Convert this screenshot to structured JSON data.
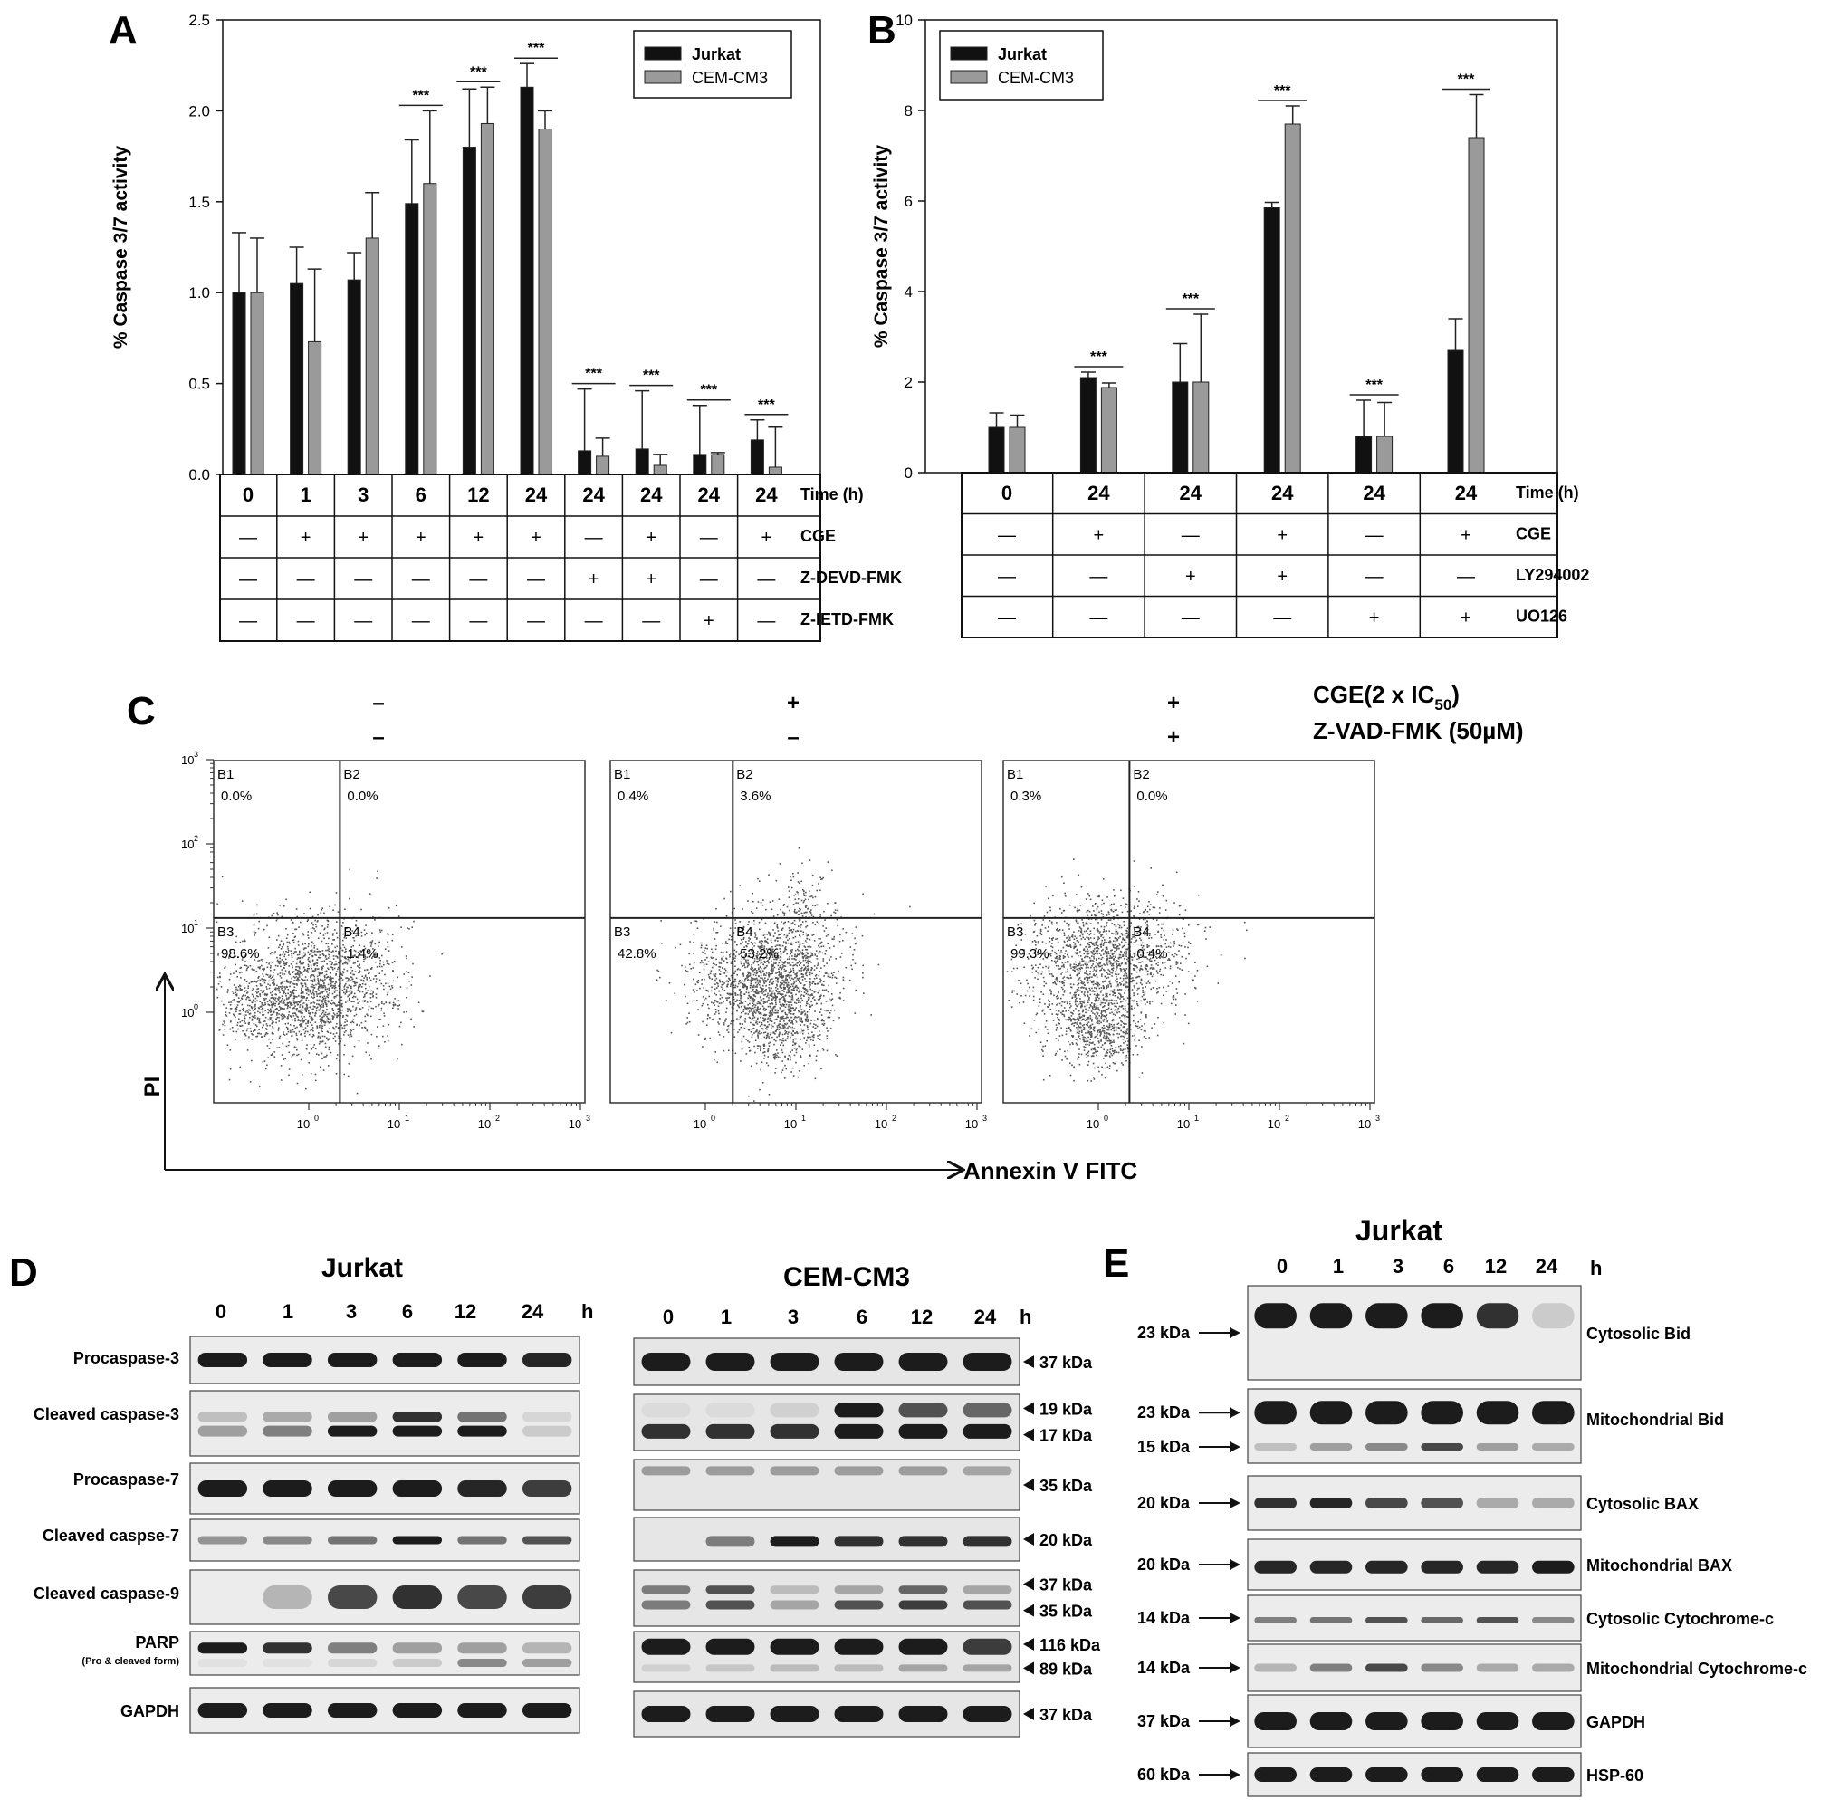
{
  "panelA": {
    "letter": "A",
    "chart_data": {
      "type": "bar",
      "ylabel": "% Caspase 3/7 activity",
      "ylim": [
        0,
        2.5
      ],
      "yticks": [
        "0.0",
        "0.5",
        "1.0",
        "1.5",
        "2.0",
        "2.5"
      ],
      "series": [
        {
          "name": "Jurkat",
          "color": "#111111",
          "values": [
            1.0,
            1.05,
            1.07,
            1.49,
            1.8,
            2.13,
            0.13,
            0.14,
            0.11,
            0.19
          ],
          "errors": [
            0.33,
            0.2,
            0.15,
            0.35,
            0.32,
            0.13,
            0.34,
            0.32,
            0.27,
            0.11
          ]
        },
        {
          "name": "CEM-CM3",
          "color": "#9a9a9a",
          "values": [
            1.0,
            0.73,
            1.3,
            1.6,
            1.93,
            1.9,
            0.1,
            0.05,
            0.11,
            0.04
          ],
          "errors": [
            0.3,
            0.4,
            0.25,
            0.4,
            0.2,
            0.1,
            0.1,
            0.06,
            0.01,
            0.22
          ]
        }
      ],
      "significance": [
        "",
        "",
        "",
        "***",
        "***",
        "***",
        "***",
        "***",
        "***",
        "***"
      ],
      "table": {
        "rows": [
          {
            "label": "Time (h)",
            "values": [
              "0",
              "1",
              "3",
              "6",
              "12",
              "24",
              "24",
              "24",
              "24",
              "24"
            ]
          },
          {
            "label": "CGE",
            "values": [
              "—",
              "+",
              "+",
              "+",
              "+",
              "+",
              "—",
              "+",
              "—",
              "+"
            ]
          },
          {
            "label": "Z-DEVD-FMK",
            "values": [
              "—",
              "—",
              "—",
              "—",
              "—",
              "—",
              "+",
              "+",
              "—",
              "—"
            ]
          },
          {
            "label": "Z-IETD-FMK",
            "values": [
              "—",
              "—",
              "—",
              "—",
              "—",
              "—",
              "—",
              "—",
              "+",
              "—"
            ]
          }
        ]
      }
    }
  },
  "panelB": {
    "letter": "B",
    "chart_data": {
      "type": "bar",
      "ylabel": "% Caspase 3/7 activity",
      "ylim": [
        0,
        10
      ],
      "yticks": [
        "0",
        "2",
        "4",
        "6",
        "8",
        "10"
      ],
      "series": [
        {
          "name": "Jurkat",
          "color": "#111111",
          "values": [
            1.0,
            2.1,
            2.0,
            5.85,
            0.8,
            2.7
          ],
          "errors": [
            0.32,
            0.12,
            0.85,
            0.12,
            0.8,
            0.7
          ]
        },
        {
          "name": "CEM-CM3",
          "color": "#9a9a9a",
          "values": [
            1.0,
            1.88,
            2.0,
            7.7,
            0.8,
            7.4
          ],
          "errors": [
            0.27,
            0.1,
            1.5,
            0.4,
            0.75,
            0.95
          ]
        }
      ],
      "significance": [
        "",
        "***",
        "***",
        "***",
        "***",
        "***"
      ],
      "table": {
        "rows": [
          {
            "label": "Time (h)",
            "values": [
              "0",
              "24",
              "24",
              "24",
              "24",
              "24"
            ]
          },
          {
            "label": "CGE",
            "values": [
              "—",
              "+",
              "—",
              "+",
              "—",
              "+"
            ]
          },
          {
            "label": "LY294002",
            "values": [
              "—",
              "—",
              "+",
              "+",
              "—",
              "—"
            ]
          },
          {
            "label": "UO126",
            "values": [
              "—",
              "—",
              "—",
              "—",
              "+",
              "+"
            ]
          }
        ]
      }
    }
  },
  "panelC": {
    "letter": "C",
    "treatment_labels": [
      "CGE(2 x IC",
      "50",
      ")",
      "Z-VAD-FMK (50µM)"
    ],
    "conditions": [
      {
        "cge": "–",
        "zvad": "–",
        "quadrants": {
          "B1": "0.0%",
          "B2": "0.0%",
          "B3": "98.6%",
          "B4": "1.4%"
        }
      },
      {
        "cge": "+",
        "zvad": "–",
        "quadrants": {
          "B1": "0.4%",
          "B2": "3.6%",
          "B3": "42.8%",
          "B4": "53.2%"
        }
      },
      {
        "cge": "+",
        "zvad": "+",
        "quadrants": {
          "B1": "0.3%",
          "B2": "0.0%",
          "B3": "99.3%",
          "B4": "0.4%"
        }
      }
    ],
    "quadrant_names": [
      "B1",
      "B2",
      "B3",
      "B4"
    ],
    "y_axis": "PI",
    "x_axis": "Annexin V FITC",
    "log_ticks": [
      "10",
      "0",
      "10",
      "1",
      "10",
      "2",
      "10",
      "3"
    ]
  },
  "panelD": {
    "letter": "D",
    "jurkat_title": "Jurkat",
    "cem_title": "CEM-CM3",
    "timepoints": [
      "0",
      "1",
      "3",
      "6",
      "12",
      "24"
    ],
    "unit": "h",
    "rows": [
      {
        "label": "Procaspase-3",
        "kda": [
          "37 kDa"
        ]
      },
      {
        "label": "Cleaved caspase-3",
        "kda": [
          "19 kDa",
          "17 kDa"
        ]
      },
      {
        "label": "Procaspase-7",
        "kda": [
          "35 kDa"
        ]
      },
      {
        "label": "Cleaved caspse-7",
        "kda": [
          "20 kDa"
        ]
      },
      {
        "label": "Cleaved caspase-9",
        "kda": [
          "37 kDa",
          "35 kDa"
        ]
      },
      {
        "label": "PARP",
        "sublabel": "(Pro & cleaved form)",
        "kda": [
          "116 kDa",
          "89 kDa"
        ]
      },
      {
        "label": "GAPDH",
        "kda": [
          "37 kDa"
        ]
      }
    ]
  },
  "panelE": {
    "letter": "E",
    "title": "Jurkat",
    "timepoints": [
      "0",
      "1",
      "3",
      "6",
      "12",
      "24"
    ],
    "unit": "h",
    "rows": [
      {
        "label": "Cytosolic Bid",
        "kda": [
          "23 kDa"
        ]
      },
      {
        "label": "Mitochondrial Bid",
        "kda": [
          "23 kDa",
          "15 kDa"
        ]
      },
      {
        "label": "Cytosolic BAX",
        "kda": [
          "20 kDa"
        ]
      },
      {
        "label": "Mitochondrial BAX",
        "kda": [
          "20 kDa"
        ]
      },
      {
        "label": "Cytosolic Cytochrome-c",
        "kda": [
          "14 kDa"
        ]
      },
      {
        "label": "Mitochondrial Cytochrome-c",
        "kda": [
          "14 kDa"
        ]
      },
      {
        "label": "GAPDH",
        "kda": [
          "37 kDa"
        ]
      },
      {
        "label": "HSP-60",
        "kda": [
          "60 kDa"
        ]
      }
    ]
  }
}
